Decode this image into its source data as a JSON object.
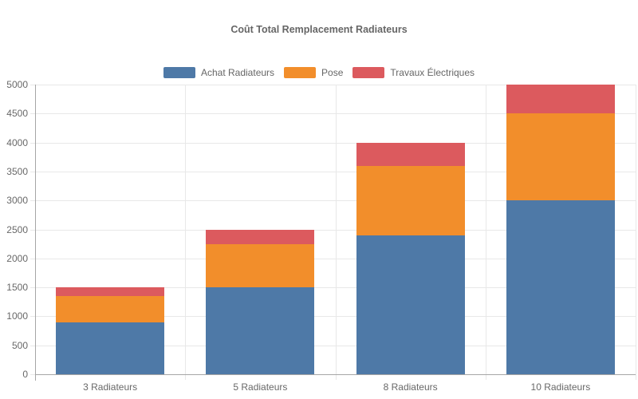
{
  "styles": {
    "background": "#ffffff",
    "text_color": "#666666",
    "grid_color": "#e8e8e8",
    "axis_color": "#a6a6a6"
  },
  "chart_data": {
    "type": "bar",
    "stacked": true,
    "title": "Coût Total Remplacement Radiateurs",
    "categories": [
      "3 Radiateurs",
      "5 Radiateurs",
      "8 Radiateurs",
      "10 Radiateurs"
    ],
    "series": [
      {
        "name": "Achat Radiateurs",
        "color": "#4e79a7",
        "values": [
          900,
          1500,
          2400,
          3000
        ]
      },
      {
        "name": "Pose",
        "color": "#f28e2b",
        "values": [
          450,
          750,
          1200,
          1500
        ]
      },
      {
        "name": "Travaux Électriques",
        "color": "#dc5a5e",
        "values": [
          150,
          250,
          400,
          500
        ]
      }
    ],
    "stack_totals": [
      1500,
      2500,
      4000,
      5000
    ],
    "ylim": [
      0,
      5000
    ],
    "ytick_step": 500,
    "grid": true,
    "legend_position": "top",
    "xlabel": "",
    "ylabel": ""
  }
}
